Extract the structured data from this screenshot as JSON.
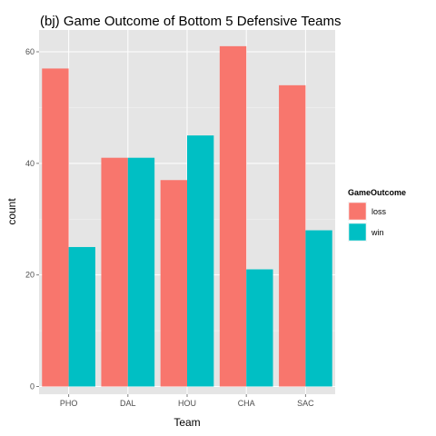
{
  "chart_data": {
    "type": "bar",
    "title": "(bj) Game Outcome of Bottom 5 Defensive Teams",
    "xlabel": "Team",
    "ylabel": "count",
    "categories": [
      "PHO",
      "DAL",
      "HOU",
      "CHA",
      "SAC"
    ],
    "series": [
      {
        "name": "loss",
        "values": [
          57,
          41,
          37,
          61,
          54
        ],
        "color": "#F8766D"
      },
      {
        "name": "win",
        "values": [
          25,
          41,
          45,
          21,
          28
        ],
        "color": "#00BFC4"
      }
    ],
    "ylim": [
      0,
      64
    ],
    "yticks": [
      0,
      20,
      40,
      60
    ],
    "grid": true,
    "legend": {
      "title": "GameOutcome",
      "position": "right"
    },
    "panel_color": "#E5E5E5",
    "grid_color": "#FFFFFF"
  }
}
